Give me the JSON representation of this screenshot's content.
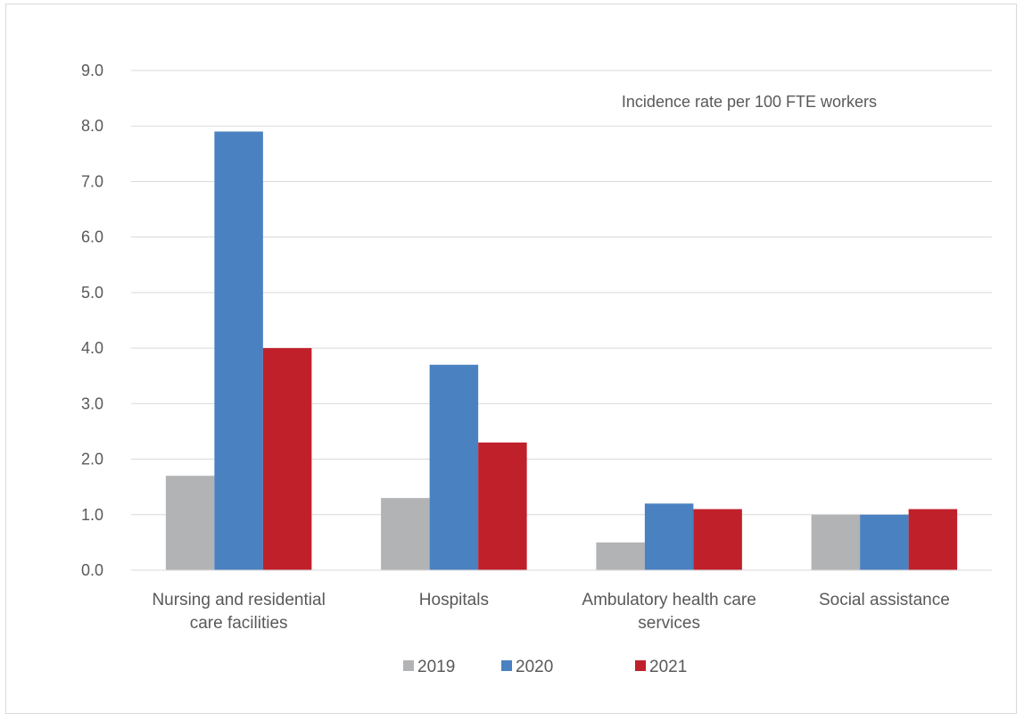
{
  "chart_data": {
    "type": "bar",
    "title": "",
    "annotation": "Incidence rate per 100 FTE workers",
    "xlabel": "",
    "ylabel": "",
    "categories": [
      [
        "Nursing and residential",
        "care facilities"
      ],
      [
        "Hospitals"
      ],
      [
        "Ambulatory health care",
        "services"
      ],
      [
        "Social assistance"
      ]
    ],
    "series": [
      {
        "name": "2019",
        "color": "#b2b3b5",
        "values": [
          1.7,
          1.3,
          0.5,
          1.0
        ]
      },
      {
        "name": "2020",
        "color": "#4a81c1",
        "values": [
          7.9,
          3.7,
          1.2,
          1.0
        ]
      },
      {
        "name": "2021",
        "color": "#c0202a",
        "values": [
          4.0,
          2.3,
          1.1,
          1.1
        ]
      }
    ],
    "yticks": [
      "0.0",
      "1.0",
      "2.0",
      "3.0",
      "4.0",
      "5.0",
      "6.0",
      "7.0",
      "8.0",
      "9.0"
    ],
    "ylim": [
      0,
      9
    ],
    "grid": true,
    "legend_position": "bottom"
  }
}
